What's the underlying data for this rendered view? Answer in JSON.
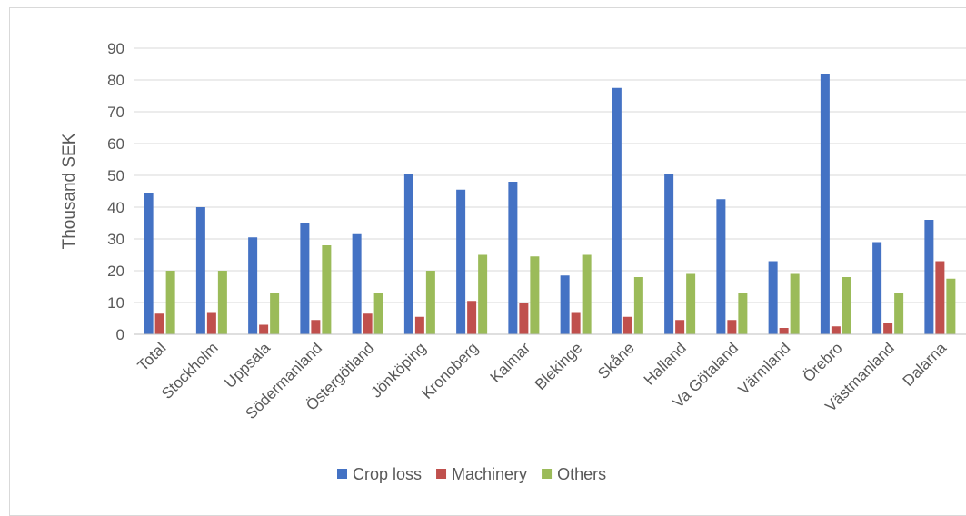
{
  "chart_data": {
    "type": "bar",
    "title": "",
    "xlabel": "",
    "ylabel": "Thousand SEK",
    "ylim": [
      0,
      90
    ],
    "yticks": [
      0,
      10,
      20,
      30,
      40,
      50,
      60,
      70,
      80,
      90
    ],
    "grid": true,
    "legend_position": "bottom",
    "categories": [
      "Total",
      "Stockholm",
      "Uppsala",
      "Södermanland",
      "Östergötland",
      "Jönköping",
      "Kronoberg",
      "Kalmar",
      "Blekinge",
      "Skåne",
      "Halland",
      "Va Götaland",
      "Värmland",
      "Örebro",
      "Västmanland",
      "Dalarna"
    ],
    "series": [
      {
        "name": "Crop loss",
        "color": "#4472c4",
        "values": [
          44.5,
          40,
          30.5,
          35,
          31.5,
          50.5,
          45.5,
          48,
          18.5,
          77.5,
          50.5,
          42.5,
          23,
          82,
          29,
          36
        ]
      },
      {
        "name": "Machinery",
        "color": "#c0504d",
        "values": [
          6.5,
          7,
          3,
          4.5,
          6.5,
          5.5,
          10.5,
          10,
          7,
          5.5,
          4.5,
          4.5,
          2,
          2.5,
          3.5,
          23
        ]
      },
      {
        "name": "Others",
        "color": "#9bbb59",
        "values": [
          20,
          20,
          13,
          28,
          13,
          20,
          25,
          24.5,
          25,
          18,
          19,
          13,
          19,
          18,
          13,
          17.5
        ]
      }
    ]
  }
}
